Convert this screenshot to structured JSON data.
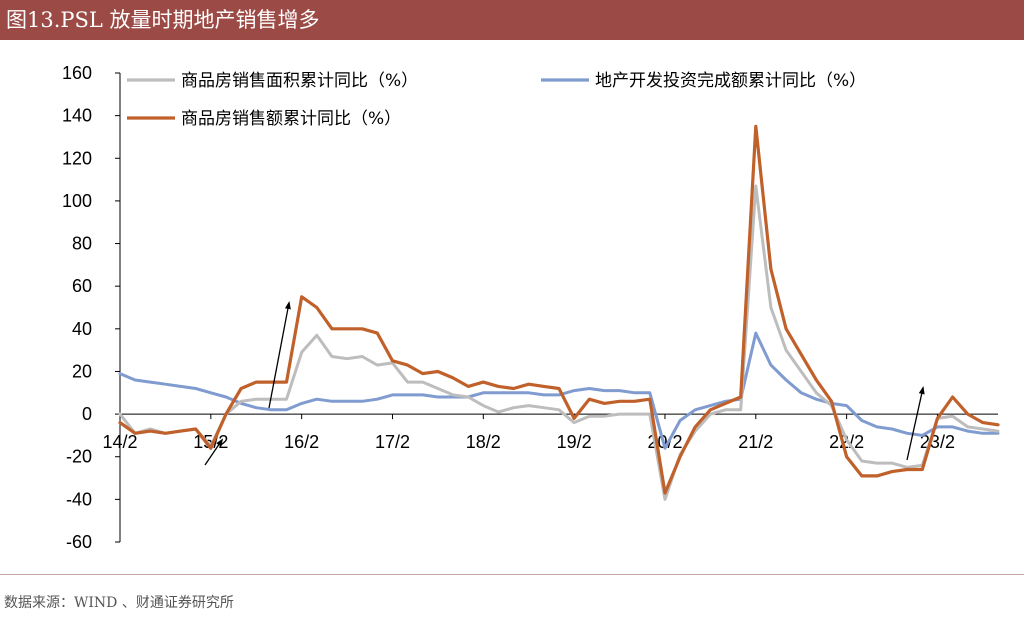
{
  "header": {
    "title": "图13.PSL 放量时期地产销售增多"
  },
  "footer": {
    "source": "数据来源：WIND 、财通证券研究所"
  },
  "chart_data": {
    "type": "line",
    "title": "图13.PSL 放量时期地产销售增多",
    "xlabel": "",
    "ylabel": "",
    "ylim": [
      -60,
      160
    ],
    "yticks": [
      -60,
      -40,
      -20,
      0,
      20,
      40,
      60,
      80,
      100,
      120,
      140,
      160
    ],
    "xticks": [
      "14/2",
      "15/2",
      "16/2",
      "17/2",
      "18/2",
      "19/2",
      "20/2",
      "21/2",
      "22/2",
      "23/2"
    ],
    "grid": false,
    "legend_position": "top",
    "x": [
      "14/2",
      "14/4",
      "14/6",
      "14/8",
      "14/10",
      "14/12",
      "15/2",
      "15/4",
      "15/6",
      "15/8",
      "15/10",
      "15/12",
      "16/2",
      "16/4",
      "16/6",
      "16/8",
      "16/10",
      "16/12",
      "17/2",
      "17/4",
      "17/6",
      "17/8",
      "17/10",
      "17/12",
      "18/2",
      "18/4",
      "18/6",
      "18/8",
      "18/10",
      "18/12",
      "19/2",
      "19/4",
      "19/6",
      "19/8",
      "19/10",
      "19/12",
      "20/2",
      "20/4",
      "20/6",
      "20/8",
      "20/10",
      "20/12",
      "21/2",
      "21/4",
      "21/6",
      "21/8",
      "21/10",
      "21/12",
      "22/2",
      "22/4",
      "22/6",
      "22/8",
      "22/10",
      "22/12",
      "23/2",
      "23/4",
      "23/6",
      "23/8",
      "23/10"
    ],
    "series": [
      {
        "name": "商品房销售面积累计同比（%）",
        "color": "#bdbdbd",
        "values": [
          0,
          -9,
          -7,
          -9,
          -8,
          -7,
          -15,
          0,
          6,
          7,
          7,
          7,
          29,
          37,
          27,
          26,
          27,
          23,
          24,
          15,
          15,
          12,
          9,
          8,
          4,
          1,
          3,
          4,
          3,
          2,
          -4,
          -1,
          -1,
          0,
          0,
          0,
          -40,
          -19,
          -8,
          0,
          2,
          2,
          107,
          50,
          30,
          20,
          10,
          4,
          -12,
          -22,
          -23,
          -23,
          -25,
          -24,
          -2,
          -1,
          -6,
          -7,
          -8
        ]
      },
      {
        "name": "地产开发投资完成额累计同比（%）",
        "color": "#7f9bcf",
        "values": [
          19,
          16,
          15,
          14,
          13,
          12,
          10,
          8,
          5,
          3,
          2,
          2,
          5,
          7,
          6,
          6,
          6,
          7,
          9,
          9,
          9,
          8,
          8,
          8,
          10,
          10,
          10,
          10,
          9,
          9,
          11,
          12,
          11,
          11,
          10,
          10,
          -16,
          -3,
          2,
          4,
          6,
          7,
          38,
          23,
          16,
          10,
          7,
          5,
          4,
          -3,
          -6,
          -7,
          -9,
          -10,
          -6,
          -6,
          -8,
          -9,
          -9
        ]
      },
      {
        "name": "商品房销售额累计同比（%）",
        "color": "#c0602a",
        "values": [
          -4,
          -9,
          -8,
          -9,
          -8,
          -7,
          -16,
          0,
          12,
          15,
          15,
          15,
          55,
          50,
          40,
          40,
          40,
          38,
          25,
          23,
          19,
          20,
          17,
          13,
          15,
          13,
          12,
          14,
          13,
          12,
          -2,
          7,
          5,
          6,
          6,
          7,
          -37,
          -20,
          -6,
          2,
          5,
          8,
          135,
          68,
          40,
          28,
          16,
          6,
          -20,
          -29,
          -29,
          -27,
          -26,
          -26,
          -2,
          8,
          0,
          -4,
          -5
        ]
      }
    ]
  }
}
